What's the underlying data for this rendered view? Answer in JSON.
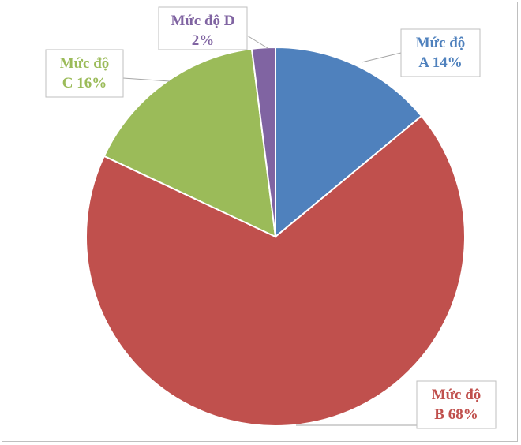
{
  "chart_data": {
    "type": "pie",
    "categories": [
      "Mức độ A",
      "Mức độ B",
      "Mức độ C",
      "Mức độ D"
    ],
    "values": [
      14,
      68,
      16,
      2
    ],
    "unit": "%",
    "colors": [
      "#4f81bd",
      "#c0504d",
      "#9bbb59",
      "#8064a2"
    ],
    "labels": [
      {
        "line1": "Mức độ",
        "line2": "A 14%"
      },
      {
        "line1": "Mức độ",
        "line2": "B 68%"
      },
      {
        "line1": "Mức độ",
        "line2": "C 16%"
      },
      {
        "line1": "Mức độ D",
        "line2": "2%"
      }
    ]
  }
}
